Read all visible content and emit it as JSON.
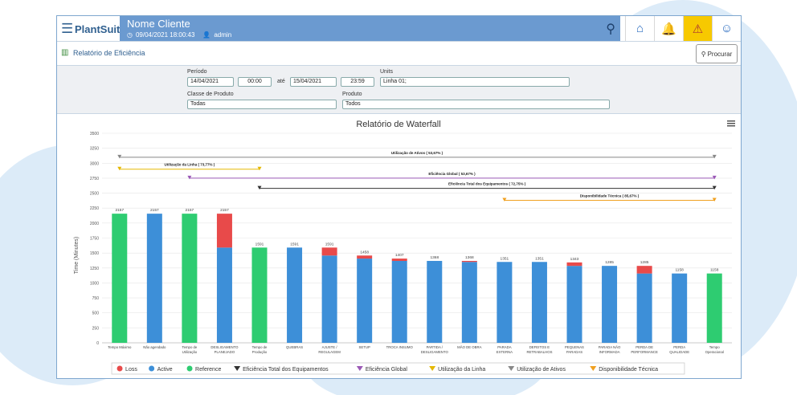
{
  "app": {
    "brand": "PlantSuite",
    "client_name": "Nome Cliente",
    "datetime": "09/04/2021 18:00:43",
    "user": "admin"
  },
  "page": {
    "title": "Relatório de Eficiência",
    "search_button": "Procurar"
  },
  "filters": {
    "periodo_label": "Período",
    "start_date": "14/04/2021",
    "start_time": "00:00",
    "ate_label": "até",
    "end_date": "15/04/2021",
    "end_time": "23:59",
    "units_label": "Units",
    "units_value": "Linha 01;",
    "classe_label": "Classe de Produto",
    "classe_value": "Todas",
    "produto_label": "Produto",
    "produto_value": "Todos"
  },
  "colors": {
    "loss": "#e84a4a",
    "active": "#3d8fd8",
    "reference": "#2ecc71",
    "header": "#6b9ad0",
    "alert": "#f7c900"
  },
  "chart_data": {
    "type": "bar",
    "title": "Relatório de Waterfall",
    "ylabel": "Time (Minutes)",
    "xlabel": "",
    "ylim": [
      0,
      3500
    ],
    "yticks": [
      0,
      250,
      500,
      750,
      1000,
      1250,
      1500,
      1750,
      2000,
      2250,
      2500,
      2750,
      3000,
      3250,
      3500
    ],
    "categories": [
      [
        "Tempo Máximo"
      ],
      [
        "Não agendado"
      ],
      [
        "Tempo de",
        "Utilização"
      ],
      [
        "DESLIGAMENTO",
        "PLANEJADO"
      ],
      [
        "Tempo de",
        "Produção"
      ],
      [
        "QUEBRAS"
      ],
      [
        "AJUSTE /",
        "REGULAGEM"
      ],
      [
        "SETUP"
      ],
      [
        "TROCA INSUMO"
      ],
      [
        "PARTIDA /",
        "DESLIGAMENTO"
      ],
      [
        "MÃO DE OBRA"
      ],
      [
        "PARADA",
        "EXTERNA"
      ],
      [
        "DEFEITOS E",
        "RETRABALHOS"
      ],
      [
        "PEQUENAS",
        "PARADAS"
      ],
      [
        "PARADA NÃO",
        "INFORMADA"
      ],
      [
        "PERDA DE",
        "PERFORMANCE"
      ],
      [
        "PERDA",
        "QUALIDADE"
      ],
      [
        "Tempo",
        "Operacional"
      ]
    ],
    "bars": [
      {
        "kind": "reference",
        "base": 0,
        "active": 2157,
        "loss": 0,
        "label": "2157"
      },
      {
        "kind": "active",
        "base": 0,
        "active": 2157,
        "loss": 0,
        "label": "2157"
      },
      {
        "kind": "reference",
        "base": 0,
        "active": 2157,
        "loss": 0,
        "label": "2157"
      },
      {
        "kind": "active",
        "base": 0,
        "active": 1591,
        "loss": 566,
        "label": "2157"
      },
      {
        "kind": "reference",
        "base": 0,
        "active": 1591,
        "loss": 0,
        "label": "1591"
      },
      {
        "kind": "active",
        "base": 0,
        "active": 1591,
        "loss": 0,
        "label": "1591"
      },
      {
        "kind": "active",
        "base": 0,
        "active": 1458,
        "loss": 133,
        "label": "1591"
      },
      {
        "kind": "active",
        "base": 0,
        "active": 1407,
        "loss": 51,
        "label": "1458"
      },
      {
        "kind": "active",
        "base": 0,
        "active": 1368,
        "loss": 39,
        "label": "1407"
      },
      {
        "kind": "active",
        "base": 0,
        "active": 1368,
        "loss": 0,
        "label": "1368"
      },
      {
        "kind": "active",
        "base": 0,
        "active": 1351,
        "loss": 17,
        "label": "1368"
      },
      {
        "kind": "active",
        "base": 0,
        "active": 1351,
        "loss": 0,
        "label": "1351"
      },
      {
        "kind": "active",
        "base": 0,
        "active": 1351,
        "loss": 0,
        "label": "1351"
      },
      {
        "kind": "active",
        "base": 0,
        "active": 1285,
        "loss": 58,
        "label": "1343"
      },
      {
        "kind": "active",
        "base": 0,
        "active": 1285,
        "loss": 0,
        "label": "1285"
      },
      {
        "kind": "active",
        "base": 0,
        "active": 1158,
        "loss": 127,
        "label": "1285"
      },
      {
        "kind": "active",
        "base": 0,
        "active": 1158,
        "loss": 0,
        "label": "1158"
      },
      {
        "kind": "reference",
        "base": 0,
        "active": 1158,
        "loss": 0,
        "label": "1158"
      }
    ],
    "ranges": [
      {
        "name": "Utilização de Ativos",
        "label": "Utilização de Ativos ( 53,67% )",
        "from": 0,
        "to": 17,
        "y": 3100,
        "color": "#888888"
      },
      {
        "name": "Utilização da Linha",
        "label": "Utilização da Linha ( 73,77% )",
        "from": 0,
        "to": 4,
        "y": 2900,
        "color": "#e5b800"
      },
      {
        "name": "Eficiência Global",
        "label": "Eficiência Global ( 53,67% )",
        "from": 2,
        "to": 17,
        "y": 2750,
        "color": "#9b59b6"
      },
      {
        "name": "Eficiência Total dos Equipamentos",
        "label": "Eficiência Total dos Equipamentos ( 72,75% )",
        "from": 4,
        "to": 17,
        "y": 2580,
        "color": "#333333"
      },
      {
        "name": "Disponibilidade Técnica",
        "label": "Disponibilidade Técnica ( 85,67% )",
        "from": 11,
        "to": 17,
        "y": 2380,
        "color": "#f0a020"
      }
    ],
    "legend": [
      {
        "name": "Loss",
        "type": "dot",
        "color": "#e84a4a"
      },
      {
        "name": "Active",
        "type": "dot",
        "color": "#3d8fd8"
      },
      {
        "name": "Reference",
        "type": "dot",
        "color": "#2ecc71"
      },
      {
        "name": "Eficiência Total dos Equipamentos",
        "type": "tri",
        "color": "#333333"
      },
      {
        "name": "Eficiência Global",
        "type": "tri",
        "color": "#9b59b6"
      },
      {
        "name": "Utilização da Linha",
        "type": "tri",
        "color": "#e5b800"
      },
      {
        "name": "Utilização de Ativos",
        "type": "tri",
        "color": "#888888"
      },
      {
        "name": "Disponibilidade Técnica",
        "type": "tri",
        "color": "#f0a020"
      }
    ],
    "legend_position": "bottom"
  }
}
